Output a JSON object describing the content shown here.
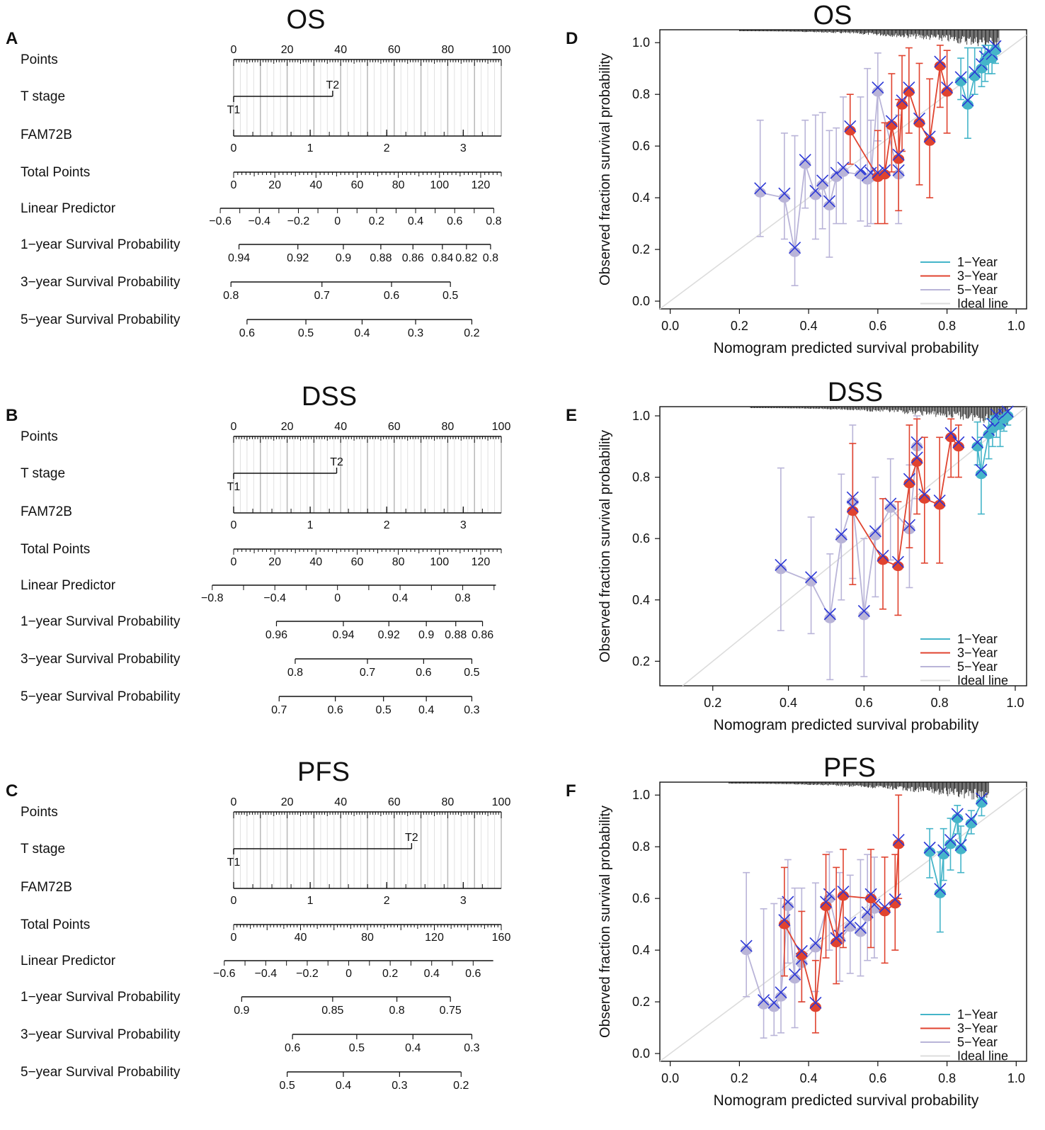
{
  "colors": {
    "one_year": "#45b5c9",
    "three_year": "#e0432f",
    "five_year": "#b9b4d8",
    "ideal": "#dcdcdc",
    "cross": "#2b37d6",
    "axis": "#111111",
    "grid": "#c8c8c8"
  },
  "chart_data": [
    {
      "type": "nomogram",
      "panel": "A",
      "title": "OS",
      "points_ticks": [
        "0",
        "20",
        "40",
        "60",
        "80",
        "100"
      ],
      "t_stage": {
        "label": "T stage",
        "levels": [
          "T1",
          "T2"
        ],
        "t2_points": 37
      },
      "fam72b": {
        "label": "FAM72B",
        "ticks": [
          "0",
          "1",
          "2",
          "3"
        ],
        "tick_points": [
          0,
          28.6,
          57.2,
          85.8
        ]
      },
      "total_points": {
        "label": "Total Points",
        "max": 130,
        "ticks": [
          "0",
          "20",
          "40",
          "60",
          "80",
          "100",
          "120"
        ],
        "tick_values": [
          0,
          20,
          40,
          60,
          80,
          100,
          120
        ]
      },
      "linear_predictor": {
        "label": "Linear Predictor",
        "ticks": [
          "−0.6",
          "−0.4",
          "−0.2",
          "0",
          "0.2",
          "0.4",
          "0.6",
          "0.8"
        ],
        "tick_points": [
          -5,
          9.6,
          24.2,
          38.8,
          53.4,
          68,
          82.6,
          97.2
        ]
      },
      "survival": [
        {
          "label": "1−year Survival Probability",
          "ticks": [
            "0.94",
            "0.92",
            "0.9",
            "0.88",
            "0.86",
            "0.84",
            "0.82",
            "0.8"
          ],
          "tick_points": [
            2,
            24,
            41,
            55,
            67,
            78,
            87,
            96
          ]
        },
        {
          "label": "3−year Survival Probability",
          "ticks": [
            "0.8",
            "0.7",
            "0.6",
            "0.5"
          ],
          "tick_points": [
            -1,
            33,
            59,
            81
          ]
        },
        {
          "label": "5−year Survival Probability",
          "ticks": [
            "0.6",
            "0.5",
            "0.4",
            "0.3",
            "0.2"
          ],
          "tick_points": [
            5,
            27,
            48,
            68,
            89
          ]
        }
      ],
      "row_labels": {
        "points": "Points"
      }
    },
    {
      "type": "nomogram",
      "panel": "B",
      "title": "DSS",
      "points_ticks": [
        "0",
        "20",
        "40",
        "60",
        "80",
        "100"
      ],
      "t_stage": {
        "label": "T stage",
        "levels": [
          "T1",
          "T2"
        ],
        "t2_points": 38.5
      },
      "fam72b": {
        "label": "FAM72B",
        "ticks": [
          "0",
          "1",
          "2",
          "3"
        ],
        "tick_points": [
          0,
          28.6,
          57.2,
          85.8
        ]
      },
      "total_points": {
        "label": "Total Points",
        "max": 130,
        "ticks": [
          "0",
          "20",
          "40",
          "60",
          "80",
          "100",
          "120"
        ],
        "tick_values": [
          0,
          20,
          40,
          60,
          80,
          100,
          120
        ]
      },
      "linear_predictor": {
        "label": "Linear Predictor",
        "ticks": [
          "−0.8",
          "−0.4",
          "0",
          "0.4",
          "0.8"
        ],
        "tick_points": [
          -8,
          15.4,
          38.8,
          62.2,
          85.6
        ]
      },
      "survival": [
        {
          "label": "1−year Survival Probability",
          "ticks": [
            "0.96",
            "0.94",
            "0.92",
            "0.9",
            "0.88",
            "0.86"
          ],
          "tick_points": [
            16,
            41,
            58,
            72,
            83,
            93
          ]
        },
        {
          "label": "3−year Survival Probability",
          "ticks": [
            "0.8",
            "0.7",
            "0.6",
            "0.5"
          ],
          "tick_points": [
            23,
            50,
            71,
            89
          ]
        },
        {
          "label": "5−year Survival Probability",
          "ticks": [
            "0.7",
            "0.6",
            "0.5",
            "0.4",
            "0.3"
          ],
          "tick_points": [
            17,
            38,
            56,
            72,
            89
          ]
        }
      ],
      "row_labels": {
        "points": "Points"
      }
    },
    {
      "type": "nomogram",
      "panel": "C",
      "title": "PFS",
      "points_ticks": [
        "0",
        "20",
        "40",
        "60",
        "80",
        "100"
      ],
      "t_stage": {
        "label": "T stage",
        "levels": [
          "T1",
          "T2"
        ],
        "t2_points": 66.5
      },
      "fam72b": {
        "label": "FAM72B",
        "ticks": [
          "0",
          "1",
          "2",
          "3"
        ],
        "tick_points": [
          0,
          28.6,
          57.2,
          85.8
        ]
      },
      "total_points": {
        "label": "Total Points",
        "max": 160,
        "ticks": [
          "0",
          "40",
          "80",
          "120",
          "160"
        ],
        "tick_values": [
          0,
          40,
          80,
          120,
          160
        ]
      },
      "linear_predictor": {
        "label": "Linear Predictor",
        "ticks": [
          "−0.6",
          "−0.4",
          "−0.2",
          "0",
          "0.2",
          "0.4",
          "0.6"
        ],
        "tick_points": [
          -3.5,
          12,
          27.5,
          43,
          58.5,
          74,
          89.5
        ]
      },
      "survival": [
        {
          "label": "1−year Survival Probability",
          "ticks": [
            "0.9",
            "0.85",
            "0.8",
            "0.75"
          ],
          "tick_points": [
            3,
            37,
            61,
            81
          ]
        },
        {
          "label": "3−year Survival Probability",
          "ticks": [
            "0.6",
            "0.5",
            "0.4",
            "0.3"
          ],
          "tick_points": [
            22,
            46,
            67,
            89
          ]
        },
        {
          "label": "5−year Survival Probability",
          "ticks": [
            "0.5",
            "0.4",
            "0.3",
            "0.2"
          ],
          "tick_points": [
            20,
            41,
            62,
            85
          ]
        }
      ],
      "row_labels": {
        "points": "Points"
      }
    },
    {
      "type": "calibration",
      "panel": "D",
      "title": "OS",
      "xlabel": "Nomogram predicted survival probability",
      "ylabel": "Observed fraction survival probability",
      "xlim": [
        -0.03,
        1.03
      ],
      "ylim": [
        -0.03,
        1.05
      ],
      "x_ticks": [
        "0.0",
        "0.2",
        "0.4",
        "0.6",
        "0.8",
        "1.0"
      ],
      "x_tick_values": [
        0,
        0.2,
        0.4,
        0.6,
        0.8,
        1.0
      ],
      "y_ticks": [
        "0.0",
        "0.2",
        "0.4",
        "0.6",
        "0.8",
        "1.0"
      ],
      "y_tick_values": [
        0,
        0.2,
        0.4,
        0.6,
        0.8,
        1.0
      ],
      "rug_range": [
        0.2,
        0.95
      ],
      "legend": [
        "1−Year",
        "3−Year",
        "5−Year",
        "Ideal line"
      ],
      "series": [
        {
          "name": "1−Year",
          "x": [
            0.84,
            0.86,
            0.88,
            0.9,
            0.91,
            0.92,
            0.93,
            0.94
          ],
          "y": [
            0.85,
            0.76,
            0.87,
            0.9,
            0.93,
            0.95,
            0.94,
            0.97
          ],
          "lo": [
            0.78,
            0.63,
            0.8,
            0.83,
            0.85,
            0.88,
            0.88,
            0.92
          ],
          "hi": [
            0.94,
            0.98,
            0.98,
            0.98,
            0.99,
            0.99,
            0.99,
            0.99
          ]
        },
        {
          "name": "3−Year",
          "x": [
            0.52,
            0.6,
            0.62,
            0.64,
            0.66,
            0.67,
            0.69,
            0.72,
            0.75,
            0.78,
            0.8
          ],
          "y": [
            0.66,
            0.48,
            0.49,
            0.68,
            0.55,
            0.76,
            0.81,
            0.69,
            0.62,
            0.91,
            0.81
          ],
          "lo": [
            0.53,
            0.3,
            0.3,
            0.5,
            0.35,
            0.58,
            0.65,
            0.45,
            0.4,
            0.75,
            0.65
          ],
          "hi": [
            0.8,
            0.66,
            0.69,
            0.88,
            0.78,
            0.95,
            0.98,
            0.92,
            0.86,
            0.99,
            0.97
          ]
        },
        {
          "name": "5−Year",
          "x": [
            0.26,
            0.33,
            0.36,
            0.39,
            0.42,
            0.44,
            0.46,
            0.48,
            0.5,
            0.55,
            0.57,
            0.58,
            0.6,
            0.66
          ],
          "y": [
            0.42,
            0.4,
            0.19,
            0.53,
            0.41,
            0.45,
            0.37,
            0.48,
            0.5,
            0.49,
            0.47,
            0.48,
            0.81,
            0.49
          ],
          "lo": [
            0.25,
            0.24,
            0.06,
            0.36,
            0.24,
            0.28,
            0.17,
            0.3,
            0.3,
            0.31,
            0.29,
            0.3,
            0.62,
            0.3
          ],
          "hi": [
            0.7,
            0.65,
            0.64,
            0.7,
            0.72,
            0.73,
            0.66,
            0.67,
            0.79,
            0.79,
            0.9,
            0.7,
            0.96,
            0.72
          ]
        }
      ]
    },
    {
      "type": "calibration",
      "panel": "E",
      "title": "DSS",
      "xlabel": "Nomogram predicted survival probability",
      "ylabel": "Observed fraction survival probability",
      "xlim": [
        0.06,
        1.03
      ],
      "ylim": [
        0.12,
        1.03
      ],
      "x_ticks": [
        "0.2",
        "0.4",
        "0.6",
        "0.8",
        "1.0"
      ],
      "x_tick_values": [
        0.2,
        0.4,
        0.6,
        0.8,
        1.0
      ],
      "y_ticks": [
        "0.2",
        "0.4",
        "0.6",
        "0.8",
        "1.0"
      ],
      "y_tick_values": [
        0.2,
        0.4,
        0.6,
        0.8,
        1.0
      ],
      "rug_range": [
        0.3,
        0.98
      ],
      "legend": [
        "1−Year",
        "3−Year",
        "5−Year",
        "Ideal line"
      ],
      "series": [
        {
          "name": "1−Year",
          "x": [
            0.9,
            0.91,
            0.93,
            0.94,
            0.95,
            0.96,
            0.97,
            0.98
          ],
          "y": [
            0.9,
            0.81,
            0.94,
            0.96,
            0.99,
            0.97,
            0.99,
            1.0
          ],
          "lo": [
            0.84,
            0.68,
            0.86,
            0.9,
            0.93,
            0.9,
            0.95,
            0.97
          ],
          "hi": [
            0.98,
            0.93,
            0.99,
            1.0,
            1.0,
            1.0,
            1.0,
            1.0
          ]
        },
        {
          "name": "3−Year",
          "x": [
            0.57,
            0.65,
            0.69,
            0.72,
            0.74,
            0.76,
            0.8,
            0.83,
            0.85
          ],
          "y": [
            0.69,
            0.53,
            0.51,
            0.78,
            0.85,
            0.73,
            0.71,
            0.93,
            0.9
          ],
          "lo": [
            0.45,
            0.37,
            0.35,
            0.57,
            0.68,
            0.52,
            0.52,
            0.8,
            0.8
          ],
          "hi": [
            0.91,
            0.73,
            0.72,
            0.97,
            0.99,
            0.93,
            0.93,
            0.99,
            0.97
          ]
        },
        {
          "name": "5−Year",
          "x": [
            0.38,
            0.46,
            0.51,
            0.54,
            0.57,
            0.6,
            0.63,
            0.67,
            0.72,
            0.74
          ],
          "y": [
            0.5,
            0.46,
            0.34,
            0.6,
            0.72,
            0.35,
            0.61,
            0.7,
            0.63,
            0.9
          ],
          "lo": [
            0.3,
            0.29,
            0.14,
            0.4,
            0.47,
            0.15,
            0.41,
            0.53,
            0.44,
            0.73
          ],
          "hi": [
            0.83,
            0.67,
            0.55,
            0.81,
            0.97,
            0.6,
            0.8,
            0.86,
            0.84,
            1.0
          ]
        }
      ]
    },
    {
      "type": "calibration",
      "panel": "F",
      "title": "PFS",
      "xlabel": "Nomogram predicted survival probability",
      "ylabel": "Observed fraction survival probability",
      "xlim": [
        -0.03,
        1.03
      ],
      "ylim": [
        -0.03,
        1.05
      ],
      "x_ticks": [
        "0.0",
        "0.2",
        "0.4",
        "0.6",
        "0.8",
        "1.0"
      ],
      "x_tick_values": [
        0,
        0.2,
        0.4,
        0.6,
        0.8,
        1.0
      ],
      "y_ticks": [
        "0.0",
        "0.2",
        "0.4",
        "0.6",
        "0.8",
        "1.0"
      ],
      "y_tick_values": [
        0,
        0.2,
        0.4,
        0.6,
        0.8,
        1.0
      ],
      "rug_range": [
        0.17,
        0.92
      ],
      "legend": [
        "1−Year",
        "3−Year",
        "5−Year",
        "Ideal line"
      ],
      "series": [
        {
          "name": "1−Year",
          "x": [
            0.75,
            0.78,
            0.79,
            0.81,
            0.83,
            0.84,
            0.87,
            0.9
          ],
          "y": [
            0.78,
            0.62,
            0.77,
            0.81,
            0.91,
            0.79,
            0.89,
            0.97
          ],
          "lo": [
            0.68,
            0.47,
            0.67,
            0.71,
            0.85,
            0.7,
            0.85,
            0.92
          ],
          "hi": [
            0.87,
            0.78,
            0.87,
            0.91,
            0.96,
            0.88,
            0.94,
            0.99
          ]
        },
        {
          "name": "3−Year",
          "x": [
            0.33,
            0.38,
            0.42,
            0.45,
            0.48,
            0.5,
            0.58,
            0.62,
            0.65,
            0.66
          ],
          "y": [
            0.5,
            0.38,
            0.18,
            0.57,
            0.43,
            0.61,
            0.6,
            0.55,
            0.58,
            0.81
          ],
          "lo": [
            0.3,
            0.2,
            0.08,
            0.37,
            0.27,
            0.41,
            0.41,
            0.35,
            0.4,
            0.6
          ],
          "hi": [
            0.72,
            0.55,
            0.36,
            0.77,
            0.72,
            0.79,
            0.79,
            0.76,
            0.77,
            1.0
          ]
        },
        {
          "name": "5−Year",
          "x": [
            0.22,
            0.27,
            0.3,
            0.32,
            0.34,
            0.36,
            0.38,
            0.42,
            0.46,
            0.49,
            0.52,
            0.55,
            0.57,
            0.59
          ],
          "y": [
            0.4,
            0.19,
            0.18,
            0.22,
            0.57,
            0.29,
            0.35,
            0.41,
            0.6,
            0.44,
            0.49,
            0.47,
            0.53,
            0.56
          ],
          "lo": [
            0.22,
            0.06,
            0.07,
            0.08,
            0.35,
            0.1,
            0.2,
            0.24,
            0.4,
            0.28,
            0.31,
            0.3,
            0.36,
            0.37
          ],
          "hi": [
            0.7,
            0.56,
            0.58,
            0.6,
            0.75,
            0.64,
            0.64,
            0.66,
            0.78,
            0.7,
            0.69,
            0.75,
            0.77,
            0.76
          ]
        }
      ]
    }
  ],
  "panel_labels": [
    "A",
    "B",
    "C",
    "D",
    "E",
    "F"
  ]
}
